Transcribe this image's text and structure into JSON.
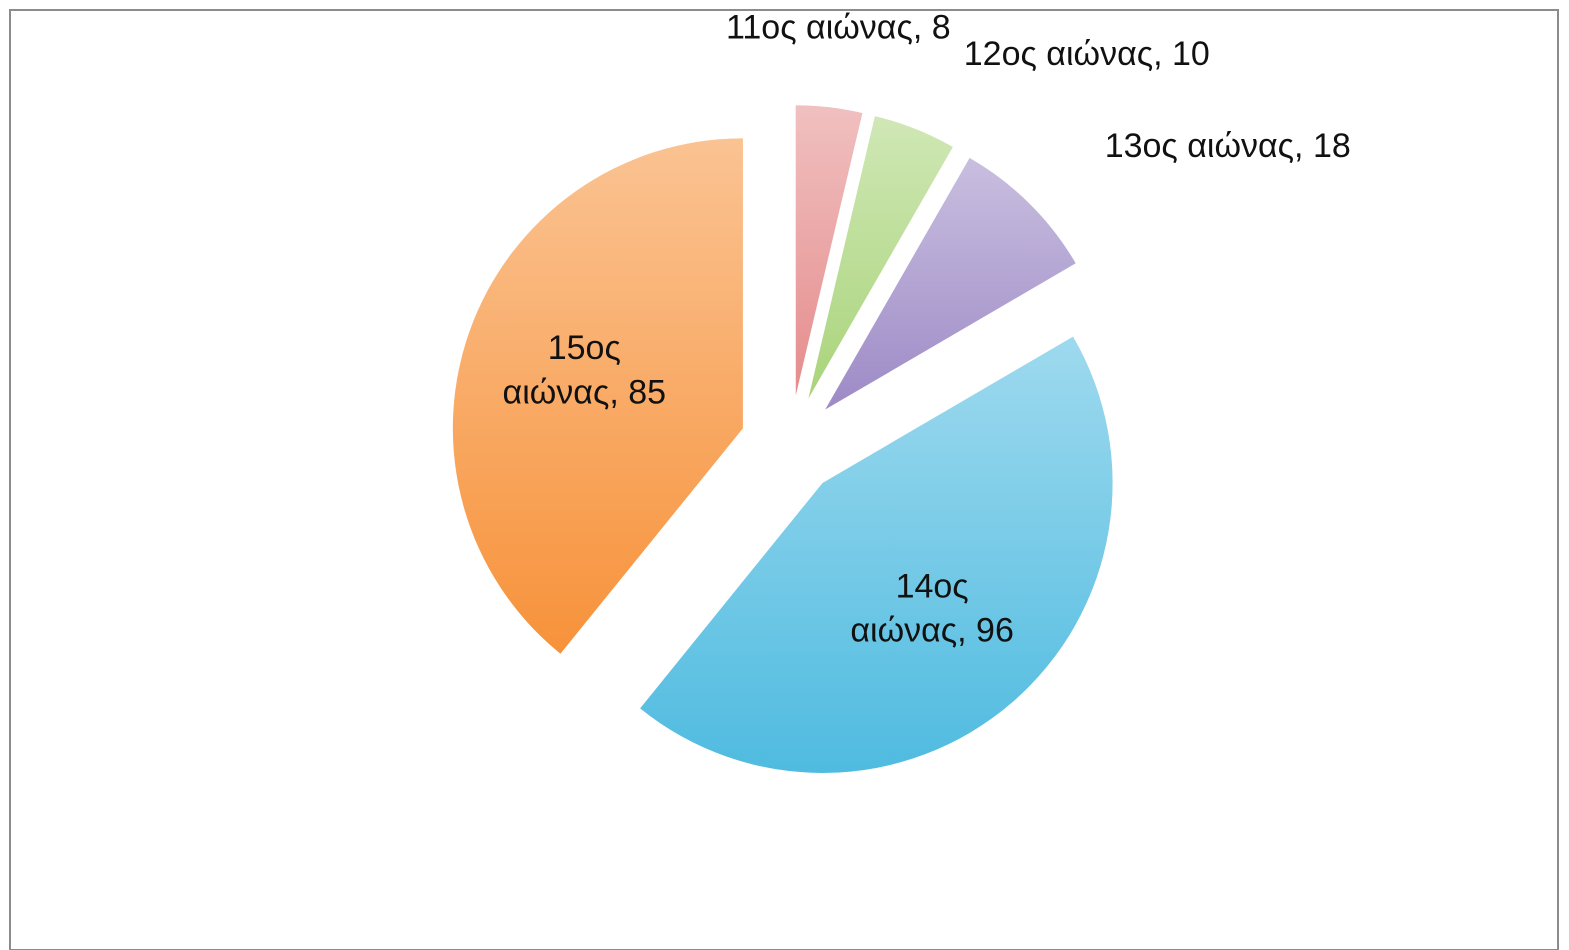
{
  "chart_data": {
    "type": "pie",
    "values": [
      8,
      10,
      18,
      96,
      85
    ],
    "value_labels": [
      "11ος αιώνας, 8",
      "12ος αιώνας, 10",
      "13ος αιώνας, 18",
      "14ος αιώνας, 96",
      "15ος αιώνας, 85"
    ],
    "colors": [
      "#e58c8c",
      "#a9d47a",
      "#9d8ac6",
      "#4fbbe0",
      "#f7923a"
    ]
  }
}
